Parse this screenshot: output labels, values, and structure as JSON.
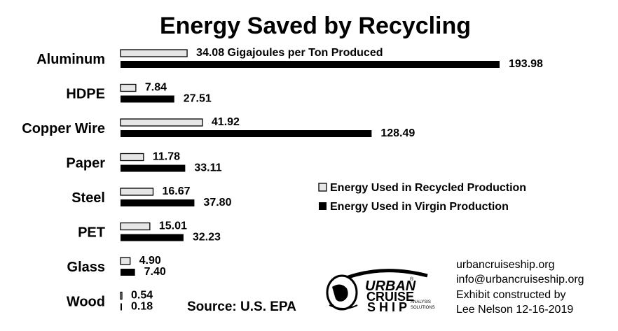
{
  "chart_data": {
    "type": "bar",
    "orientation": "horizontal",
    "title": "Energy Saved by Recycling",
    "categories": [
      "Aluminum",
      "HDPE",
      "Copper Wire",
      "Paper",
      "Steel",
      "PET",
      "Glass",
      "Wood"
    ],
    "series": [
      {
        "name": "Energy Used in Recycled Production",
        "color": "#e6e6e6",
        "values": [
          34.08,
          7.84,
          41.92,
          11.78,
          16.67,
          15.01,
          4.9,
          0.54
        ],
        "labels": [
          "34.08 Gigajoules per Ton Produced",
          "7.84",
          "41.92",
          "11.78",
          "16.67",
          "15.01",
          "4.90",
          "0.54"
        ]
      },
      {
        "name": "Energy Used in Virgin Production",
        "color": "#000000",
        "values": [
          193.98,
          27.51,
          128.49,
          33.11,
          37.8,
          32.23,
          7.4,
          0.18
        ],
        "labels": [
          "193.98",
          "27.51",
          "128.49",
          "33.11",
          "37.80",
          "32.23",
          "7.40",
          "0.18"
        ]
      }
    ],
    "xlim": [
      0,
      193.98
    ],
    "grid": false,
    "axes_visible": false,
    "legend_position": "middle-right",
    "source": "Source: U.S. EPA"
  },
  "credits": {
    "lines": [
      "urbancruiseship.org",
      "info@urbancruiseship.org",
      "Exhibit constructed by",
      "Lee Nelson 12-16-2019"
    ]
  },
  "logo": {
    "word1": "URBAN",
    "word2": "CRUISE",
    "word3": "SHIP",
    "tagline1": "ANALYSIS",
    "tagline2": "SOLUTIONS",
    "registered": "®"
  }
}
